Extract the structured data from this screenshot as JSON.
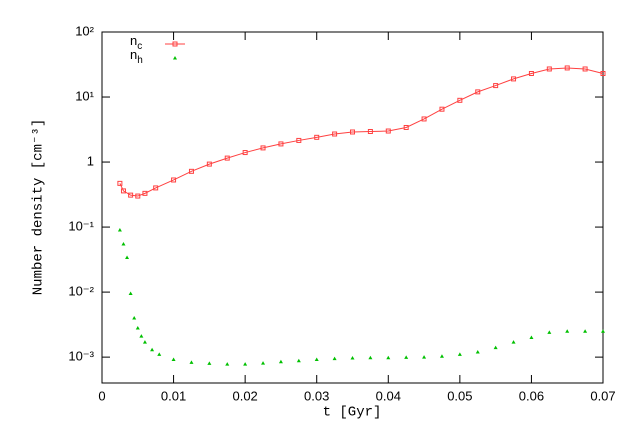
{
  "chart_data": {
    "type": "line",
    "xlabel": "t [Gyr]",
    "ylabel": "Number density [cm⁻³]",
    "xlim": [
      0,
      0.07
    ],
    "xticks": [
      0,
      0.01,
      0.02,
      0.03,
      0.04,
      0.05,
      0.06,
      0.07
    ],
    "ylim": [
      0.0004,
      100
    ],
    "ylog": true,
    "yticks": [
      {
        "value": 0.001,
        "label": "10⁻³"
      },
      {
        "value": 0.01,
        "label": "10⁻²"
      },
      {
        "value": 0.1,
        "label": "10⁻¹"
      },
      1,
      {
        "value": 10,
        "label": "10¹"
      },
      {
        "value": 100,
        "label": "10²"
      }
    ],
    "legend": "top-left",
    "series": [
      {
        "name": "n_c",
        "color": "#ff4040",
        "style": "linespoints",
        "x": [
          0.0025,
          0.003,
          0.004,
          0.005,
          0.006,
          0.0075,
          0.01,
          0.0125,
          0.015,
          0.0175,
          0.02,
          0.0225,
          0.025,
          0.0275,
          0.03,
          0.0325,
          0.035,
          0.0375,
          0.04,
          0.0425,
          0.045,
          0.0475,
          0.05,
          0.0525,
          0.055,
          0.0575,
          0.06,
          0.0625,
          0.065,
          0.0675,
          0.07
        ],
        "values": [
          0.47,
          0.36,
          0.31,
          0.3,
          0.33,
          0.4,
          0.53,
          0.72,
          0.93,
          1.15,
          1.4,
          1.65,
          1.9,
          2.15,
          2.4,
          2.7,
          2.9,
          2.95,
          3.0,
          3.4,
          4.6,
          6.5,
          8.9,
          12,
          15,
          19,
          23,
          27,
          28,
          27,
          23
        ]
      },
      {
        "name": "n_h",
        "color": "#00c000",
        "style": "points",
        "x": [
          0.0025,
          0.003,
          0.0035,
          0.004,
          0.0045,
          0.005,
          0.0055,
          0.006,
          0.007,
          0.008,
          0.01,
          0.0125,
          0.015,
          0.0175,
          0.02,
          0.0225,
          0.025,
          0.0275,
          0.03,
          0.0325,
          0.035,
          0.0375,
          0.04,
          0.0425,
          0.045,
          0.0475,
          0.05,
          0.0525,
          0.055,
          0.0575,
          0.06,
          0.0625,
          0.065,
          0.0675,
          0.07
        ],
        "values": [
          0.09,
          0.055,
          0.034,
          0.0095,
          0.004,
          0.0028,
          0.0021,
          0.0017,
          0.0013,
          0.0011,
          0.00092,
          0.00083,
          0.0008,
          0.00078,
          0.00078,
          0.00081,
          0.00085,
          0.00088,
          0.00092,
          0.00095,
          0.00097,
          0.00098,
          0.00098,
          0.00099,
          0.001,
          0.00103,
          0.0011,
          0.0012,
          0.0014,
          0.0017,
          0.002,
          0.0024,
          0.0025,
          0.0025,
          0.0025
        ]
      }
    ]
  }
}
